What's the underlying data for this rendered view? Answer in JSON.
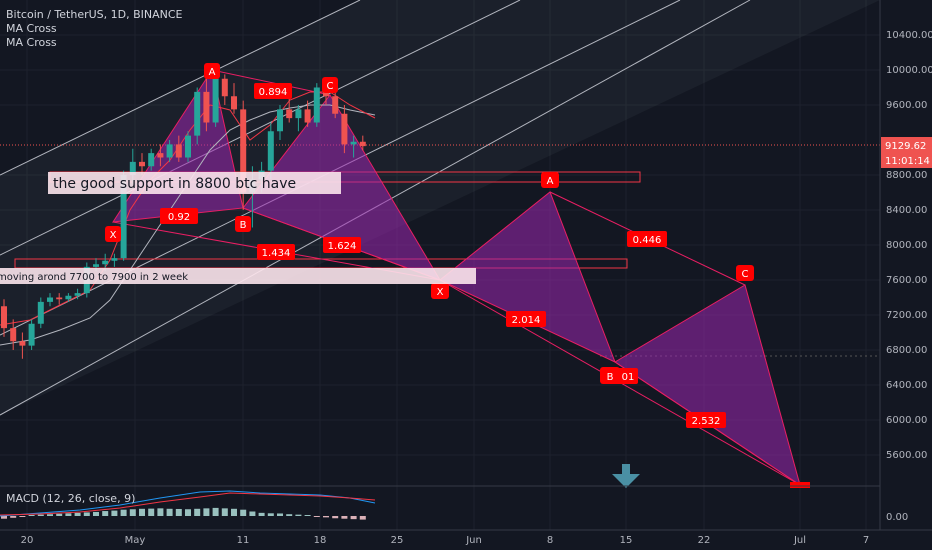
{
  "header": {
    "symbol_line": "Bitcoin / TetherUS, 1D, BINANCE",
    "indicator_1": "MA Cross",
    "indicator_2": "MA Cross"
  },
  "price_axis": {
    "ticks": [
      "10400.00",
      "10000.00",
      "9600.00",
      "8800.00",
      "8400.00",
      "8000.00",
      "7600.00",
      "7200.00",
      "6800.00",
      "6400.00",
      "6000.00",
      "5600.00"
    ],
    "current_price": "9129.62",
    "countdown": "11:01:14"
  },
  "time_axis": {
    "ticks": [
      "20",
      "May",
      "11",
      "18",
      "25",
      "Jun",
      "8",
      "15",
      "22",
      "Jul",
      "7"
    ]
  },
  "macd": {
    "title": "MACD (12, 26, close, 9)",
    "zero_tick": "0.00"
  },
  "annotations": {
    "support_note": "the good support in 8800 btc have",
    "range_note": "moving arond 7700 to 7900 in 2 week"
  },
  "pattern_labels": {
    "A1": "A",
    "B1": "B",
    "C1": "C",
    "X1": "X",
    "A2": "A",
    "B2": "B",
    "C2": "C",
    "X2": "X"
  },
  "ratios": {
    "r_0894": "0.894",
    "r_092": "0.92",
    "r_1434": "1.434",
    "r_1624": "1.624",
    "r_0446": "0.446",
    "r_2014": "2.014",
    "r_2532": "2.532",
    "r_partial": "01"
  },
  "colors": {
    "background": "#131722",
    "up_candle": "#26a69a",
    "down_candle": "#ef5350",
    "pattern_fill": "#9c27b0",
    "pattern_line": "#e91e63",
    "label_red": "#ff0000",
    "channel": "#b2b5be",
    "fast_ma": "#f23645",
    "slow_ma": "#b2b5be",
    "macd_line": "#2196f3",
    "signal_line": "#f23645",
    "arrow": "#4a90a4"
  },
  "chart_data": {
    "type": "candlestick",
    "title": "Bitcoin / TetherUS, 1D, BINANCE",
    "ylim": [
      5300,
      10700
    ],
    "candles": [
      {
        "o": 7300,
        "h": 7380,
        "l": 6950,
        "c": 7050
      },
      {
        "o": 7050,
        "h": 7150,
        "l": 6800,
        "c": 6900
      },
      {
        "o": 6900,
        "h": 7000,
        "l": 6700,
        "c": 6850
      },
      {
        "o": 6850,
        "h": 7150,
        "l": 6800,
        "c": 7100
      },
      {
        "o": 7100,
        "h": 7400,
        "l": 7050,
        "c": 7350
      },
      {
        "o": 7350,
        "h": 7450,
        "l": 7300,
        "c": 7400
      },
      {
        "o": 7400,
        "h": 7450,
        "l": 7320,
        "c": 7380
      },
      {
        "o": 7380,
        "h": 7450,
        "l": 7350,
        "c": 7420
      },
      {
        "o": 7420,
        "h": 7500,
        "l": 7380,
        "c": 7450
      },
      {
        "o": 7450,
        "h": 7800,
        "l": 7400,
        "c": 7750
      },
      {
        "o": 7750,
        "h": 7850,
        "l": 7700,
        "c": 7780
      },
      {
        "o": 7780,
        "h": 7900,
        "l": 7700,
        "c": 7820
      },
      {
        "o": 7820,
        "h": 7900,
        "l": 7750,
        "c": 7850
      },
      {
        "o": 7850,
        "h": 8850,
        "l": 7820,
        "c": 8800
      },
      {
        "o": 8800,
        "h": 9100,
        "l": 8700,
        "c": 8950
      },
      {
        "o": 8950,
        "h": 9050,
        "l": 8800,
        "c": 8900
      },
      {
        "o": 8900,
        "h": 9100,
        "l": 8850,
        "c": 9050
      },
      {
        "o": 9050,
        "h": 9150,
        "l": 8900,
        "c": 9000
      },
      {
        "o": 9000,
        "h": 9200,
        "l": 8950,
        "c": 9150
      },
      {
        "o": 9150,
        "h": 9250,
        "l": 8950,
        "c": 9000
      },
      {
        "o": 9000,
        "h": 9300,
        "l": 8950,
        "c": 9250
      },
      {
        "o": 9250,
        "h": 9800,
        "l": 9150,
        "c": 9750
      },
      {
        "o": 9750,
        "h": 9950,
        "l": 9300,
        "c": 9400
      },
      {
        "o": 9400,
        "h": 10000,
        "l": 9350,
        "c": 9900
      },
      {
        "o": 9900,
        "h": 9950,
        "l": 9600,
        "c": 9700
      },
      {
        "o": 9700,
        "h": 9850,
        "l": 9500,
        "c": 9550
      },
      {
        "o": 9550,
        "h": 9650,
        "l": 8400,
        "c": 8600
      },
      {
        "o": 8600,
        "h": 8900,
        "l": 8200,
        "c": 8750
      },
      {
        "o": 8750,
        "h": 8950,
        "l": 8600,
        "c": 8850
      },
      {
        "o": 8850,
        "h": 9400,
        "l": 8750,
        "c": 9300
      },
      {
        "o": 9300,
        "h": 9600,
        "l": 9200,
        "c": 9550
      },
      {
        "o": 9550,
        "h": 9700,
        "l": 9400,
        "c": 9450
      },
      {
        "o": 9450,
        "h": 9600,
        "l": 9300,
        "c": 9550
      },
      {
        "o": 9550,
        "h": 9650,
        "l": 9350,
        "c": 9400
      },
      {
        "o": 9400,
        "h": 9850,
        "l": 9350,
        "c": 9800
      },
      {
        "o": 9800,
        "h": 9850,
        "l": 9600,
        "c": 9700
      },
      {
        "o": 9700,
        "h": 9750,
        "l": 9450,
        "c": 9500
      },
      {
        "o": 9500,
        "h": 9600,
        "l": 9050,
        "c": 9150
      },
      {
        "o": 9150,
        "h": 9250,
        "l": 9000,
        "c": 9180
      },
      {
        "o": 9180,
        "h": 9250,
        "l": 9080,
        "c": 9130
      }
    ],
    "macd_histogram": [
      -30,
      -20,
      -10,
      5,
      15,
      20,
      25,
      30,
      35,
      40,
      45,
      55,
      60,
      70,
      75,
      80,
      82,
      85,
      80,
      78,
      75,
      80,
      85,
      90,
      85,
      80,
      70,
      50,
      35,
      30,
      28,
      20,
      15,
      10,
      -5,
      -15,
      -25,
      -30,
      -35,
      -40
    ]
  }
}
